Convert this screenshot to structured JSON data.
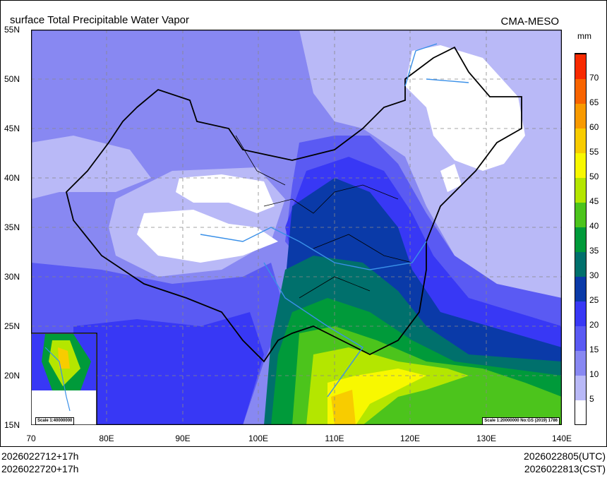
{
  "header": {
    "title": "surface Total Precipitable Water Vapor",
    "model": "CMA-MESO"
  },
  "axes": {
    "lat_labels": [
      "55N",
      "50N",
      "45N",
      "40N",
      "35N",
      "30N",
      "25N",
      "20N",
      "15N"
    ],
    "lon_labels": [
      "70",
      "80E",
      "90E",
      "100E",
      "110E",
      "120E",
      "130E",
      "140E"
    ],
    "lat_range": [
      15,
      55
    ],
    "lon_range": [
      70,
      140
    ]
  },
  "legend": {
    "unit": "mm",
    "levels": [
      "5",
      "10",
      "15",
      "20",
      "25",
      "30",
      "35",
      "40",
      "45",
      "50",
      "55",
      "60",
      "65",
      "70"
    ],
    "colors": [
      "#ffffff",
      "#b9b9f7",
      "#8888f2",
      "#5a5af3",
      "#3838f5",
      "#0a3aa8",
      "#00706c",
      "#009a3a",
      "#4cc41c",
      "#b4e600",
      "#f8f800",
      "#f8cc00",
      "#f89a00",
      "#f86400",
      "#f82a00"
    ]
  },
  "inset": {
    "scale": "Scale 1:40000000"
  },
  "map_scale": "Scale 1:20000000 No:GS (2019) 1786",
  "footer": {
    "init_utc": "2026022712+17h",
    "init_cst": "2026022720+17h",
    "valid_utc": "2026022805(UTC)",
    "valid_cst": "2026022813(CST)"
  }
}
